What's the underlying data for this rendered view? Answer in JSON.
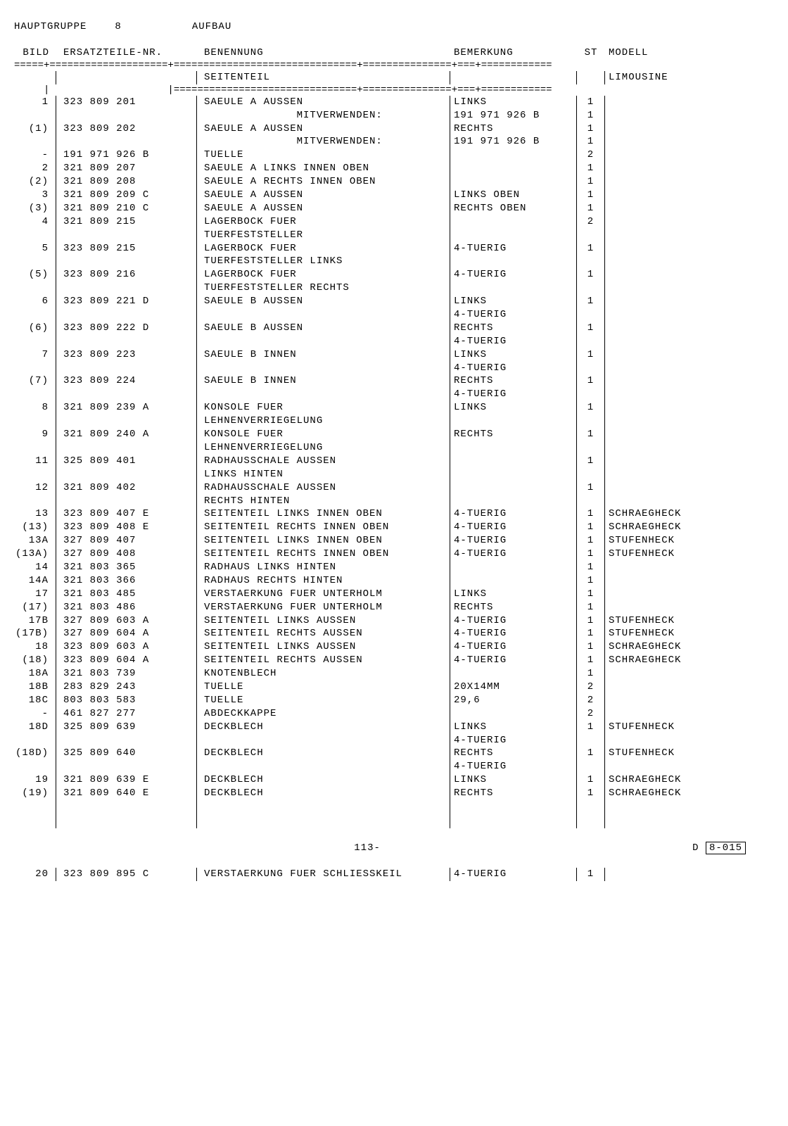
{
  "header": {
    "group_label": "HAUPTGRUPPE",
    "group_num": "8",
    "title": "AUFBAU"
  },
  "columns": {
    "bild": "BILD",
    "part": "ERSATZTEILE-NR.",
    "name": "BENENNUNG",
    "remark": "BEMERKUNG",
    "st": "ST",
    "model": "MODELL"
  },
  "subheader": {
    "name": "SEITENTEIL",
    "model": "LIMOUSINE"
  },
  "rows": [
    {
      "bild": "1",
      "part": "323 809 201",
      "name": "SAEULE A AUSSEN",
      "remark": "LINKS",
      "st": "1",
      "model": ""
    },
    {
      "bild": "",
      "part": "",
      "name": "              MITVERWENDEN:",
      "remark": "191 971 926 B",
      "st": "1",
      "model": ""
    },
    {
      "bild": "(1)",
      "part": "323 809 202",
      "name": "SAEULE A AUSSEN",
      "remark": "RECHTS",
      "st": "1",
      "model": ""
    },
    {
      "bild": "",
      "part": "",
      "name": "              MITVERWENDEN:",
      "remark": "191 971 926 B",
      "st": "1",
      "model": ""
    },
    {
      "bild": "-",
      "part": "191 971 926 B",
      "name": "TUELLE",
      "remark": "",
      "st": "2",
      "model": ""
    },
    {
      "bild": "2",
      "part": "321 809 207",
      "name": "SAEULE A LINKS INNEN OBEN",
      "remark": "",
      "st": "1",
      "model": ""
    },
    {
      "bild": "(2)",
      "part": "321 809 208",
      "name": "SAEULE A RECHTS INNEN OBEN",
      "remark": "",
      "st": "1",
      "model": ""
    },
    {
      "bild": "3",
      "part": "321 809 209 C",
      "name": "SAEULE A AUSSEN",
      "remark": "LINKS OBEN",
      "st": "1",
      "model": ""
    },
    {
      "bild": "(3)",
      "part": "321 809 210 C",
      "name": "SAEULE A AUSSEN",
      "remark": "RECHTS OBEN",
      "st": "1",
      "model": ""
    },
    {
      "bild": "4",
      "part": "321 809 215",
      "name": "LAGERBOCK FUER",
      "remark": "",
      "st": "2",
      "model": ""
    },
    {
      "bild": "",
      "part": "",
      "name": "TUERFESTSTELLER",
      "remark": "",
      "st": "",
      "model": ""
    },
    {
      "bild": "5",
      "part": "323 809 215",
      "name": "LAGERBOCK FUER",
      "remark": "4-TUERIG",
      "st": "1",
      "model": ""
    },
    {
      "bild": "",
      "part": "",
      "name": "TUERFESTSTELLER LINKS",
      "remark": "",
      "st": "",
      "model": ""
    },
    {
      "bild": "(5)",
      "part": "323 809 216",
      "name": "LAGERBOCK FUER",
      "remark": "4-TUERIG",
      "st": "1",
      "model": ""
    },
    {
      "bild": "",
      "part": "",
      "name": "TUERFESTSTELLER RECHTS",
      "remark": "",
      "st": "",
      "model": ""
    },
    {
      "bild": "6",
      "part": "323 809 221 D",
      "name": "SAEULE B AUSSEN",
      "remark": "LINKS",
      "st": "1",
      "model": ""
    },
    {
      "bild": "",
      "part": "",
      "name": "",
      "remark": "4-TUERIG",
      "st": "",
      "model": ""
    },
    {
      "bild": "(6)",
      "part": "323 809 222 D",
      "name": "SAEULE B AUSSEN",
      "remark": "RECHTS",
      "st": "1",
      "model": ""
    },
    {
      "bild": "",
      "part": "",
      "name": "",
      "remark": "4-TUERIG",
      "st": "",
      "model": ""
    },
    {
      "bild": "7",
      "part": "323 809 223",
      "name": "SAEULE B INNEN",
      "remark": "LINKS",
      "st": "1",
      "model": ""
    },
    {
      "bild": "",
      "part": "",
      "name": "",
      "remark": "4-TUERIG",
      "st": "",
      "model": ""
    },
    {
      "bild": "(7)",
      "part": "323 809 224",
      "name": "SAEULE B INNEN",
      "remark": "RECHTS",
      "st": "1",
      "model": ""
    },
    {
      "bild": "",
      "part": "",
      "name": "",
      "remark": "4-TUERIG",
      "st": "",
      "model": ""
    },
    {
      "bild": "8",
      "part": "321 809 239 A",
      "name": "KONSOLE FUER",
      "remark": "LINKS",
      "st": "1",
      "model": ""
    },
    {
      "bild": "",
      "part": "",
      "name": "LEHNENVERRIEGELUNG",
      "remark": "",
      "st": "",
      "model": ""
    },
    {
      "bild": "9",
      "part": "321 809 240 A",
      "name": "KONSOLE FUER",
      "remark": "RECHTS",
      "st": "1",
      "model": ""
    },
    {
      "bild": "",
      "part": "",
      "name": "LEHNENVERRIEGELUNG",
      "remark": "",
      "st": "",
      "model": ""
    },
    {
      "bild": "11",
      "part": "325 809 401",
      "name": "RADHAUSSCHALE AUSSEN",
      "remark": "",
      "st": "1",
      "model": ""
    },
    {
      "bild": "",
      "part": "",
      "name": "LINKS HINTEN",
      "remark": "",
      "st": "",
      "model": ""
    },
    {
      "bild": "12",
      "part": "321 809 402",
      "name": "RADHAUSSCHALE AUSSEN",
      "remark": "",
      "st": "1",
      "model": ""
    },
    {
      "bild": "",
      "part": "",
      "name": "RECHTS HINTEN",
      "remark": "",
      "st": "",
      "model": ""
    },
    {
      "bild": "13",
      "part": "323 809 407 E",
      "name": "SEITENTEIL LINKS INNEN OBEN",
      "remark": "4-TUERIG",
      "st": "1",
      "model": "SCHRAEGHECK"
    },
    {
      "bild": "(13)",
      "part": "323 809 408 E",
      "name": "SEITENTEIL RECHTS INNEN OBEN",
      "remark": "4-TUERIG",
      "st": "1",
      "model": "SCHRAEGHECK"
    },
    {
      "bild": "13A",
      "part": "327 809 407",
      "name": "SEITENTEIL LINKS INNEN OBEN",
      "remark": "4-TUERIG",
      "st": "1",
      "model": "STUFENHECK"
    },
    {
      "bild": "(13A)",
      "part": "327 809 408",
      "name": "SEITENTEIL RECHTS INNEN OBEN",
      "remark": "4-TUERIG",
      "st": "1",
      "model": "STUFENHECK"
    },
    {
      "bild": "14",
      "part": "321 803 365",
      "name": "RADHAUS LINKS HINTEN",
      "remark": "",
      "st": "1",
      "model": ""
    },
    {
      "bild": "14A",
      "part": "321 803 366",
      "name": "RADHAUS RECHTS HINTEN",
      "remark": "",
      "st": "1",
      "model": ""
    },
    {
      "bild": "17",
      "part": "321 803 485",
      "name": "VERSTAERKUNG FUER UNTERHOLM",
      "remark": "LINKS",
      "st": "1",
      "model": ""
    },
    {
      "bild": "(17)",
      "part": "321 803 486",
      "name": "VERSTAERKUNG FUER UNTERHOLM",
      "remark": "RECHTS",
      "st": "1",
      "model": ""
    },
    {
      "bild": "17B",
      "part": "327 809 603 A",
      "name": "SEITENTEIL LINKS AUSSEN",
      "remark": "4-TUERIG",
      "st": "1",
      "model": "STUFENHECK"
    },
    {
      "bild": "(17B)",
      "part": "327 809 604 A",
      "name": "SEITENTEIL RECHTS AUSSEN",
      "remark": "4-TUERIG",
      "st": "1",
      "model": "STUFENHECK"
    },
    {
      "bild": "18",
      "part": "323 809 603 A",
      "name": "SEITENTEIL LINKS AUSSEN",
      "remark": "4-TUERIG",
      "st": "1",
      "model": "SCHRAEGHECK"
    },
    {
      "bild": "(18)",
      "part": "323 809 604 A",
      "name": "SEITENTEIL RECHTS AUSSEN",
      "remark": "4-TUERIG",
      "st": "1",
      "model": "SCHRAEGHECK"
    },
    {
      "bild": "18A",
      "part": "321 803 739",
      "name": "KNOTENBLECH",
      "remark": "",
      "st": "1",
      "model": ""
    },
    {
      "bild": "18B",
      "part": "283 829 243",
      "name": "TUELLE",
      "remark": "20X14MM",
      "st": "2",
      "model": ""
    },
    {
      "bild": "18C",
      "part": "803 803 583",
      "name": "TUELLE",
      "remark": "29,6",
      "st": "2",
      "model": ""
    },
    {
      "bild": "-",
      "part": "461 827 277",
      "name": "ABDECKKAPPE",
      "remark": "",
      "st": "2",
      "model": ""
    },
    {
      "bild": "18D",
      "part": "325 809 639",
      "name": "DECKBLECH",
      "remark": "LINKS",
      "st": "1",
      "model": "STUFENHECK"
    },
    {
      "bild": "",
      "part": "",
      "name": "",
      "remark": "4-TUERIG",
      "st": "",
      "model": ""
    },
    {
      "bild": "(18D)",
      "part": "325 809 640",
      "name": "DECKBLECH",
      "remark": "RECHTS",
      "st": "1",
      "model": "STUFENHECK"
    },
    {
      "bild": "",
      "part": "",
      "name": "",
      "remark": "4-TUERIG",
      "st": "",
      "model": ""
    },
    {
      "bild": "19",
      "part": "321 809 639 E",
      "name": "DECKBLECH",
      "remark": "LINKS",
      "st": "1",
      "model": "SCHRAEGHECK"
    },
    {
      "bild": "(19)",
      "part": "321 809 640 E",
      "name": "DECKBLECH",
      "remark": "RECHTS",
      "st": "1",
      "model": "SCHRAEGHECK"
    }
  ],
  "footer": {
    "page": "113-",
    "code_prefix": "D",
    "code": "8-015"
  },
  "lastrow": {
    "bild": "20",
    "part": "323 809 895 C",
    "name": "VERSTAERKUNG FUER SCHLIESSKEIL",
    "remark": "4-TUERIG",
    "st": "1",
    "model": ""
  }
}
